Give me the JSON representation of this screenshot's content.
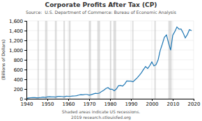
{
  "chart_data": {
    "type": "line",
    "title": "Corporate Profits After Tax (CP)",
    "subtitle": "Source:  U.S. Department of Commerce: Bureau of Economic Analysis",
    "y_label": "(Billions of Dollars)",
    "annotations": [
      "Shaded areas indicate US recessions.",
      "2019 research.stlouisfed.org"
    ],
    "xlim": [
      1940,
      2020
    ],
    "ylim": [
      0,
      1600
    ],
    "xticks": [
      1940,
      1950,
      1960,
      1970,
      1980,
      1990,
      2000,
      2010,
      2020
    ],
    "yticks": [
      0,
      200,
      400,
      600,
      800,
      {
        "value": 1000,
        "label": "1,000"
      },
      {
        "value": 1200,
        "label": "1,200"
      },
      {
        "value": 1400,
        "label": "1,400"
      },
      {
        "value": 1600,
        "label": "1,600"
      }
    ],
    "grid": true,
    "recessions": [
      [
        1945.3,
        1945.9
      ],
      [
        1948.9,
        1949.9
      ],
      [
        1953.6,
        1954.5
      ],
      [
        1957.7,
        1958.4
      ],
      [
        1960.3,
        1961.1
      ],
      [
        1969.9,
        1970.9
      ],
      [
        1973.9,
        1975.2
      ],
      [
        1980.0,
        1980.6
      ],
      [
        1981.6,
        1982.9
      ],
      [
        1990.6,
        1991.2
      ],
      [
        2001.2,
        2001.9
      ],
      [
        2007.9,
        2009.5
      ]
    ],
    "x": [
      1940,
      1941,
      1942,
      1943,
      1944,
      1945,
      1946,
      1947,
      1948,
      1949,
      1950,
      1951,
      1952,
      1953,
      1954,
      1955,
      1956,
      1957,
      1958,
      1959,
      1960,
      1961,
      1962,
      1963,
      1964,
      1965,
      1966,
      1967,
      1968,
      1969,
      1970,
      1971,
      1972,
      1973,
      1974,
      1975,
      1976,
      1977,
      1978,
      1979,
      1980,
      1981,
      1982,
      1983,
      1984,
      1985,
      1986,
      1987,
      1988,
      1989,
      1990,
      1991,
      1992,
      1993,
      1994,
      1995,
      1996,
      1997,
      1998,
      1999,
      2000,
      2001,
      2002,
      2003,
      2004,
      2005,
      2006,
      2007,
      2008,
      2009,
      2010,
      2011,
      2012,
      2013,
      2014,
      2015,
      2016,
      2017,
      2018,
      2019
    ],
    "values": [
      9.8,
      17.0,
      21.1,
      25.1,
      24.3,
      19.7,
      22.1,
      26.8,
      33.1,
      26.3,
      37.7,
      42.1,
      36.7,
      38.3,
      34.1,
      46.9,
      46.8,
      46.5,
      39.0,
      51.6,
      49.8,
      49.9,
      55.4,
      57.3,
      63.1,
      74.9,
      83.2,
      80.5,
      89.4,
      89.5,
      74.5,
      83.2,
      97.6,
      112.2,
      107.0,
      117.5,
      151.4,
      175.5,
      211.5,
      228.0,
      195.4,
      196.3,
      165.0,
      200.3,
      265.6,
      273.2,
      260.5,
      302.5,
      367.2,
      363.9,
      363.2,
      347.5,
      388.6,
      430.0,
      480.8,
      533.8,
      601.0,
      663.2,
      618.9,
      681.1,
      756.5,
      674.5,
      699.5,
      800.0,
      991.0,
      1121.0,
      1263.0,
      1310.0,
      1145.0,
      998.0,
      1305.0,
      1380.0,
      1475.0,
      1430.0,
      1430.0,
      1350.0,
      1250.0,
      1320.0,
      1420.0,
      1400.0
    ]
  }
}
